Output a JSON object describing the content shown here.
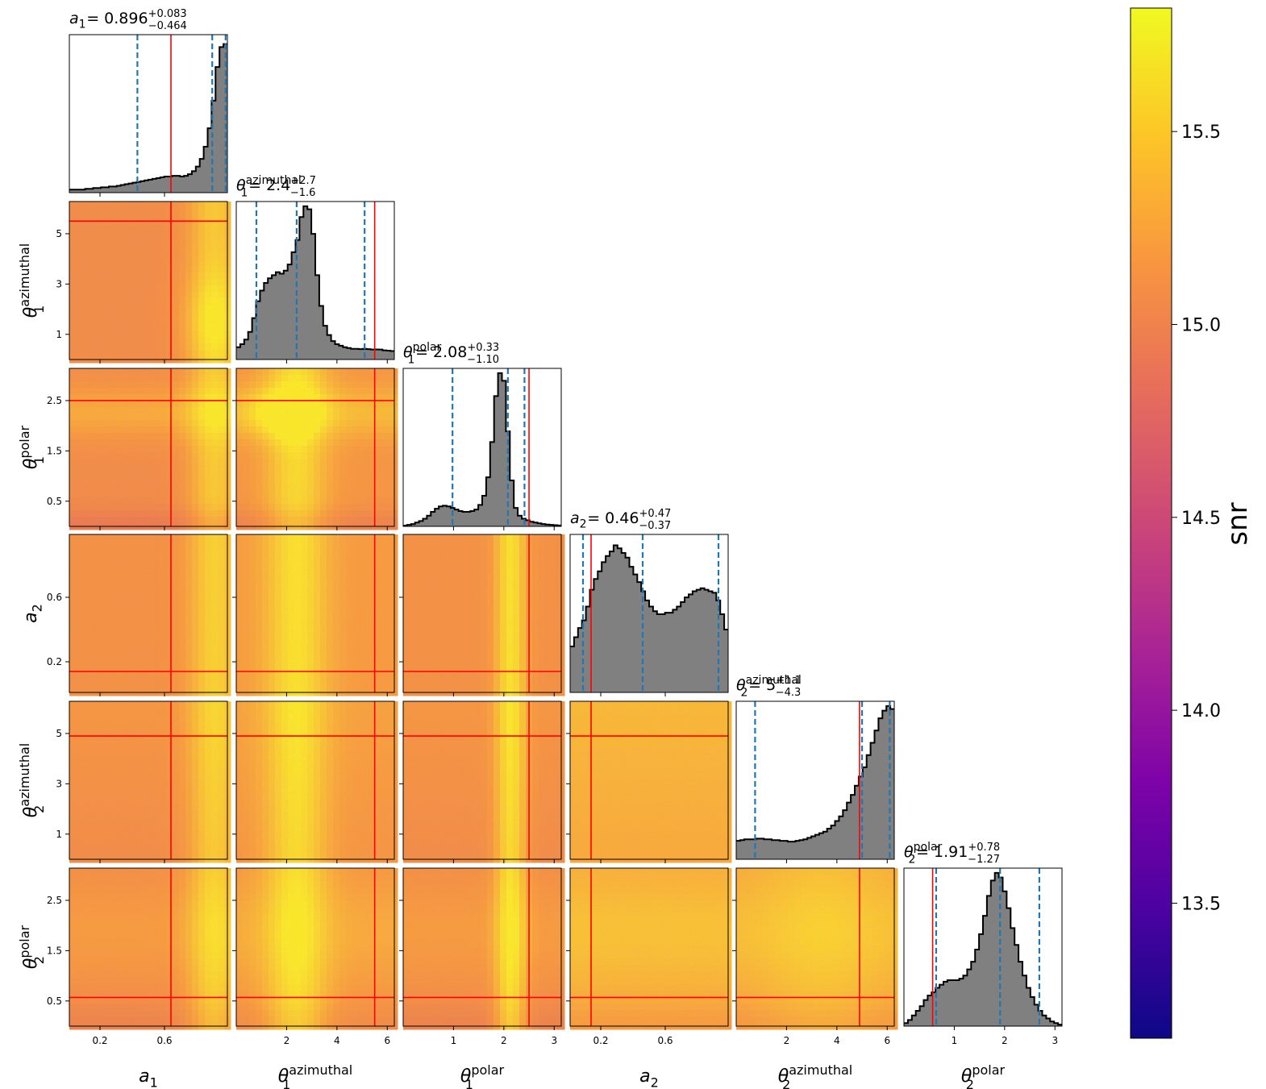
{
  "chart_data": {
    "type": "corner",
    "parameters": [
      {
        "key": "a1",
        "label": "a_1",
        "truth": 0.64,
        "range": [
          0.01,
          0.99
        ],
        "ticks": [
          0.2,
          0.6
        ],
        "tick_labels": [
          "0.2",
          "0.6"
        ],
        "title": {
          "value": "0.896",
          "plus": "+0.083",
          "minus": "−0.464"
        },
        "quantiles": [
          0.432,
          0.896,
          0.979
        ],
        "hist": [
          0.02,
          0.02,
          0.02,
          0.02,
          0.025,
          0.025,
          0.03,
          0.03,
          0.035,
          0.035,
          0.04,
          0.04,
          0.045,
          0.05,
          0.055,
          0.06,
          0.065,
          0.07,
          0.075,
          0.08,
          0.085,
          0.09,
          0.095,
          0.1,
          0.105,
          0.105,
          0.11,
          0.11,
          0.105,
          0.11,
          0.12,
          0.14,
          0.17,
          0.22,
          0.3,
          0.42,
          0.6,
          0.82,
          0.95,
          0.97
        ]
      },
      {
        "key": "t1az",
        "label": "θ_1^azimuthal",
        "truth": 5.5,
        "range": [
          0,
          6.28
        ],
        "ticks": [
          1,
          3,
          5
        ],
        "tick_labels": [
          "1",
          "3",
          "5"
        ],
        "xticks": [
          2,
          4,
          6
        ],
        "xtick_labels": [
          "2",
          "4",
          "6"
        ],
        "title": {
          "value": "2.4",
          "plus": "+2.7",
          "minus": "−1.6"
        },
        "quantiles": [
          0.8,
          2.4,
          5.1
        ],
        "hist": [
          0.08,
          0.1,
          0.13,
          0.18,
          0.27,
          0.38,
          0.45,
          0.5,
          0.53,
          0.55,
          0.57,
          0.56,
          0.58,
          0.62,
          0.7,
          0.78,
          0.93,
          1.0,
          0.98,
          0.82,
          0.55,
          0.35,
          0.22,
          0.16,
          0.12,
          0.1,
          0.09,
          0.08,
          0.075,
          0.07,
          0.07,
          0.068,
          0.07,
          0.068,
          0.065,
          0.066,
          0.065,
          0.06,
          0.058,
          0.055
        ]
      },
      {
        "key": "t1pol",
        "label": "θ_1^polar",
        "truth": 2.5,
        "range": [
          0,
          3.14
        ],
        "ticks": [
          0.5,
          1.5,
          2.5
        ],
        "tick_labels": [
          "0.5",
          "1.5",
          "2.5"
        ],
        "xticks": [
          1,
          2,
          3
        ],
        "xtick_labels": [
          "1",
          "2",
          "3"
        ],
        "title": {
          "value": "2.08",
          "plus": "+0.33",
          "minus": "−1.10"
        },
        "quantiles": [
          0.98,
          2.08,
          2.41
        ],
        "hist": [
          0.005,
          0.01,
          0.015,
          0.025,
          0.035,
          0.05,
          0.07,
          0.095,
          0.115,
          0.13,
          0.135,
          0.13,
          0.12,
          0.11,
          0.1,
          0.095,
          0.095,
          0.1,
          0.11,
          0.14,
          0.2,
          0.32,
          0.55,
          0.85,
          1.0,
          0.95,
          0.62,
          0.3,
          0.12,
          0.07,
          0.05,
          0.04,
          0.03,
          0.025,
          0.02,
          0.015,
          0.012,
          0.01,
          0.008,
          0.006
        ]
      },
      {
        "key": "a2",
        "label": "a_2",
        "truth": 0.14,
        "range": [
          0.01,
          0.99
        ],
        "ticks": [
          0.2,
          0.6
        ],
        "tick_labels": [
          "0.2",
          "0.6"
        ],
        "title": {
          "value": "0.46",
          "plus": "+0.47",
          "minus": "−0.37"
        },
        "quantiles": [
          0.09,
          0.46,
          0.93
        ],
        "hist": [
          0.3,
          0.36,
          0.42,
          0.47,
          0.56,
          0.67,
          0.74,
          0.79,
          0.85,
          0.89,
          0.92,
          0.96,
          0.94,
          0.91,
          0.88,
          0.82,
          0.77,
          0.72,
          0.66,
          0.6,
          0.56,
          0.53,
          0.51,
          0.51,
          0.52,
          0.52,
          0.54,
          0.56,
          0.59,
          0.62,
          0.64,
          0.66,
          0.67,
          0.68,
          0.67,
          0.66,
          0.65,
          0.6,
          0.51,
          0.41
        ]
      },
      {
        "key": "t2az",
        "label": "θ_2^azimuthal",
        "truth": 4.9,
        "range": [
          0,
          6.28
        ],
        "ticks": [
          1,
          3,
          5
        ],
        "tick_labels": [
          "1",
          "3",
          "5"
        ],
        "xticks": [
          2,
          4,
          6
        ],
        "xtick_labels": [
          "2",
          "4",
          "6"
        ],
        "title": {
          "value": "5",
          "plus": "+1.1",
          "minus": "−4.3"
        },
        "quantiles": [
          0.75,
          5.0,
          6.1
        ],
        "hist": [
          0.12,
          0.125,
          0.13,
          0.13,
          0.13,
          0.135,
          0.135,
          0.13,
          0.13,
          0.125,
          0.125,
          0.12,
          0.12,
          0.115,
          0.115,
          0.12,
          0.125,
          0.13,
          0.14,
          0.15,
          0.16,
          0.17,
          0.18,
          0.2,
          0.22,
          0.25,
          0.28,
          0.32,
          0.37,
          0.42,
          0.48,
          0.54,
          0.6,
          0.68,
          0.76,
          0.84,
          0.92,
          0.97,
          1.0,
          0.98
        ]
      },
      {
        "key": "t2pol",
        "label": "θ_2^polar",
        "truth": 0.57,
        "range": [
          0,
          3.14
        ],
        "ticks": [
          0.5,
          1.5,
          2.5
        ],
        "tick_labels": [
          "0.5",
          "1.5",
          "2.5"
        ],
        "xticks": [
          1,
          2,
          3
        ],
        "xtick_labels": [
          "1",
          "2",
          "3"
        ],
        "title": {
          "value": "1.91",
          "plus": "+0.78",
          "minus": "−1.27"
        },
        "quantiles": [
          0.64,
          1.91,
          2.69
        ],
        "hist": [
          0.02,
          0.04,
          0.07,
          0.1,
          0.13,
          0.17,
          0.2,
          0.22,
          0.25,
          0.27,
          0.29,
          0.3,
          0.3,
          0.3,
          0.31,
          0.33,
          0.37,
          0.42,
          0.5,
          0.6,
          0.72,
          0.85,
          0.95,
          1.0,
          0.97,
          0.88,
          0.77,
          0.64,
          0.53,
          0.42,
          0.33,
          0.25,
          0.19,
          0.14,
          0.1,
          0.07,
          0.05,
          0.03,
          0.02,
          0.01
        ]
      }
    ],
    "colorbar": {
      "label": "snr",
      "colormap": "plasma",
      "range": [
        13.15,
        15.82
      ],
      "ticks": [
        13.5,
        14.0,
        14.5,
        15.0,
        15.5
      ],
      "tick_labels": [
        "13.5",
        "14.0",
        "14.5",
        "15.0",
        "15.5"
      ]
    },
    "colors": {
      "histogram_fill": "#808080",
      "histogram_edge": "#000000",
      "quantile_line": "#1f77b4",
      "truth_line": "#ff0000"
    }
  }
}
